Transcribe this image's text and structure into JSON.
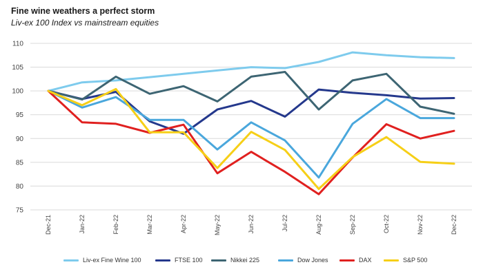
{
  "chart_data": {
    "type": "line",
    "title": "Fine wine weathers a perfect storm",
    "subtitle": "Liv-ex 100 Index vs mainstream equities",
    "x": [
      "Dec-21",
      "Jan-22",
      "Feb-22",
      "Mar-22",
      "Apr-22",
      "May-22",
      "Jun-22",
      "Jul-22",
      "Aug-22",
      "Sep-22",
      "Oct-22",
      "Nov-22",
      "Dec-22"
    ],
    "ylim": [
      75,
      110
    ],
    "yticks": [
      75,
      80,
      85,
      90,
      95,
      100,
      105,
      110
    ],
    "grid": true,
    "legend": "bottom",
    "series": [
      {
        "name": "Liv-ex Fine Wine 100",
        "color": "#7ecbed",
        "values": [
          100,
          101.8,
          102.2,
          102.9,
          103.6,
          104.3,
          105.0,
          104.8,
          106.1,
          108.1,
          107.5,
          107.1,
          106.9
        ]
      },
      {
        "name": "FTSE 100",
        "color": "#24388c",
        "values": [
          100,
          98.3,
          99.8,
          93.6,
          91.0,
          96.1,
          97.9,
          94.6,
          100.3,
          99.6,
          99.1,
          98.4,
          98.5
        ]
      },
      {
        "name": "Nikkei 225",
        "color": "#3d6573",
        "values": [
          100,
          98.2,
          103.0,
          99.4,
          101.0,
          97.8,
          103.0,
          104.0,
          96.1,
          102.2,
          103.6,
          96.7,
          95.2
        ]
      },
      {
        "name": "Dow Jones",
        "color": "#4aa7dc",
        "values": [
          100,
          96.5,
          98.7,
          93.9,
          93.9,
          87.7,
          93.4,
          89.6,
          81.8,
          93.1,
          98.3,
          94.3,
          94.3
        ]
      },
      {
        "name": "DAX",
        "color": "#e0201f",
        "values": [
          100,
          93.4,
          93.1,
          91.2,
          92.9,
          82.7,
          87.2,
          83.0,
          78.3,
          86.0,
          93.0,
          90.0,
          91.6
        ]
      },
      {
        "name": "S&P 500",
        "color": "#f6cf17",
        "values": [
          100,
          97.0,
          100.4,
          91.3,
          91.3,
          83.8,
          91.4,
          87.6,
          79.4,
          86.1,
          90.3,
          85.1,
          84.7
        ]
      }
    ]
  }
}
